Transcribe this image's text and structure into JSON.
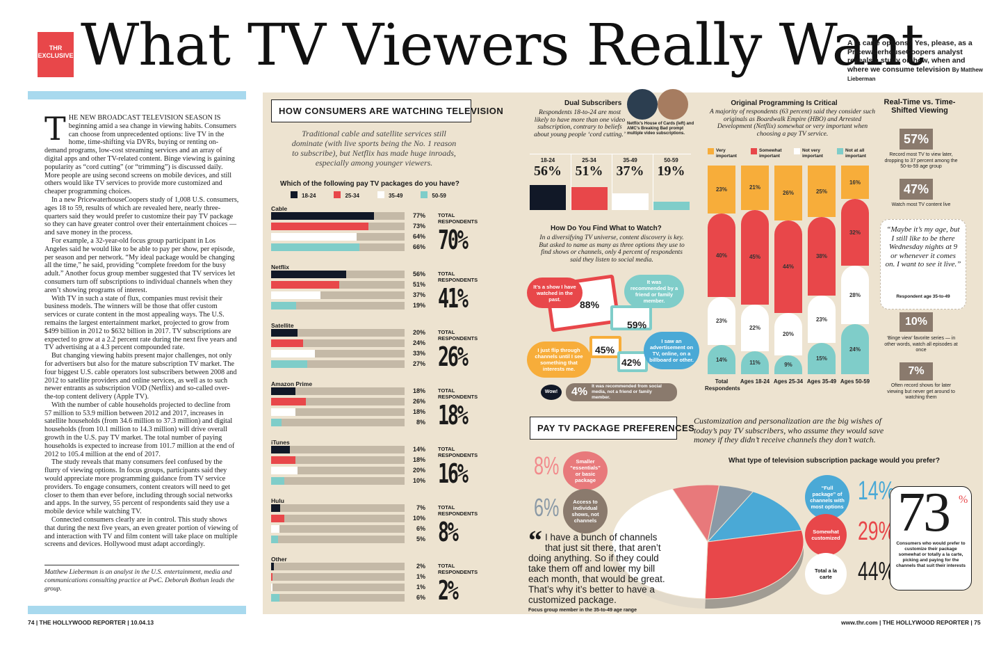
{
  "header": {
    "exclusive": "THR EXCLUSIVE",
    "title": "What TV Viewers Really Want",
    "dek": "A la carte options? Yes, please, as a PricewaterhouseCoopers analyst reveals a study on how, when and where we consume television",
    "byline": "By Matthew Lieberman"
  },
  "article": {
    "dropcap": "T",
    "paragraphs": [
      "HE NEW BROADCAST TELEVISION SEASON IS beginning amid a sea change in viewing habits. Consumers can choose from unprecedented options: live TV in the home, time-shifting via DVRs, buying or renting on-demand programs, low-cost streaming services and an array of digital apps and other TV-related content. Binge viewing is gaining popularity as “cord cutting” (or “trimming”) is discussed daily. More people are using second screens on mobile devices, and still others would like TV services to provide more customized and cheaper programming choices.",
      "In a new PricewaterhouseCoopers study of 1,008 U.S. consumers, ages 18 to 59, results of which are revealed here, nearly three-quarters said they would prefer to customize their pay TV package so they can have greater control over their entertainment choices — and save money in the process.",
      "For example, a 32-year-old focus group participant in Los Angeles said he would like to be able to pay per show, per episode, per season and per network. “My ideal package would be changing all the time,” he said, providing “complete freedom for the busy adult.” Another focus group member suggested that TV services let consumers turn off subscriptions to individual channels when they aren’t showing programs of interest.",
      "With TV in such a state of flux, companies must revisit their business models. The winners will be those that offer custom services or curate content in the most appealing ways. The U.S. remains the largest entertainment market, projected to grow from $499 billion in 2012 to $632 billion in 2017. TV subscriptions are expected to grow at a 2.2 percent rate during the next five years and TV advertising at a 4.3 percent compounded rate.",
      "But changing viewing habits present major challenges, not only for advertisers but also for the mature subscription TV market. The four biggest U.S. cable operators lost subscribers between 2008 and 2012 to satellite providers and online services, as well as to such newer entrants as subscription VOD (Netflix) and so-called over-the-top content delivery (Apple TV).",
      "With the number of cable households projected to decline from 57 million to 53.9 million between 2012 and 2017, increases in satellite households (from 34.6 million to 37.3 million) and digital households (from 10.1 million to 14.3 million) will drive overall growth in the U.S. pay TV market. The total number of paying households is expected to increase from 101.7 million at the end of 2012 to 105.4 million at the end of 2017.",
      "The study reveals that many consumers feel confused by the flurry of viewing options. In focus groups, participants said they would appreciate more programming guidance from TV service providers. To engage consumers, content creators will need to get closer to them than ever before, including through social networks and apps. In the survey, 55 percent of respondents said they use a mobile device while watching TV.",
      "Connected consumers clearly are in control. This study shows that during the next five years, an even greater portion of viewing of and interaction with TV and film content will take place on multiple screens and devices. Hollywood must adapt accordingly."
    ],
    "bio": "Matthew Lieberman is an analyst in the U.S. entertainment, media and communications consulting practice at PwC. Deborah Bothun leads the group."
  },
  "watching": {
    "heading": "HOW CONSUMERS ARE WATCHING TELEVISION",
    "intro": "Traditional cable and satellite services still dominate (with live sports being the No. 1 reason to subscribe), but Netflix has made huge inroads, especially among younger viewers.",
    "question": "Which of the following pay TV packages do you have?",
    "legend": [
      "18-24",
      "25-34",
      "35-49",
      "50-59"
    ],
    "total_label": "TOTAL RESPONDENTS",
    "services": [
      {
        "name": "Cable",
        "values": [
          77,
          73,
          64,
          66
        ],
        "labels": [
          "77%",
          "73%",
          "64%",
          "66%"
        ],
        "total": "70%"
      },
      {
        "name": "Netflix",
        "values": [
          56,
          51,
          37,
          19
        ],
        "labels": [
          "56%",
          "51%",
          "37%",
          "19%"
        ],
        "total": "41%"
      },
      {
        "name": "Satellite",
        "values": [
          20,
          24,
          33,
          27
        ],
        "labels": [
          "20%",
          "24%",
          "33%",
          "27%"
        ],
        "total": "26%"
      },
      {
        "name": "Amazon Prime",
        "values": [
          18,
          26,
          18,
          8
        ],
        "labels": [
          "18%",
          "26%",
          "18%",
          "8%"
        ],
        "total": "18%"
      },
      {
        "name": "iTunes",
        "values": [
          14,
          18,
          20,
          10
        ],
        "labels": [
          "14%",
          "18%",
          "20%",
          "10%"
        ],
        "total": "16%"
      },
      {
        "name": "Hulu",
        "values": [
          7,
          10,
          6,
          5
        ],
        "labels": [
          "7%",
          "10%",
          "6%",
          "5%"
        ],
        "total": "8%"
      },
      {
        "name": "Other",
        "values": [
          2,
          1,
          1,
          6
        ],
        "labels": [
          "2%",
          "1%",
          "1%",
          "6%"
        ],
        "total": "2%"
      }
    ]
  },
  "dual": {
    "title": "Dual Subscribers",
    "text": "Respondents 18-to-24 are most likely to have more than one video subscription, contrary to beliefs about young people ‘cord cutting.’",
    "caption": "Netflix’s House of Cards (left) and AMC’s Breaking Bad prompt multiple video subscriptions.",
    "groups": [
      "18-24",
      "25-34",
      "35-49",
      "50-59"
    ],
    "values": [
      56,
      51,
      37,
      19
    ],
    "labels": [
      "56%",
      "51%",
      "37%",
      "19%"
    ]
  },
  "find": {
    "title": "How Do You Find What to Watch?",
    "text": "In a diversifying TV universe, content discovery is key. But asked to name as many as three options they use to find shows or channels, only 4 percent of respondents said they listen to social media.",
    "items": [
      {
        "label": "It’s a show I have watched in the past.",
        "pct": "88%"
      },
      {
        "label": "It was recommended by a friend or family member.",
        "pct": "59%"
      },
      {
        "label": "I just flip through channels until I see something that interests me.",
        "pct": "45%"
      },
      {
        "label": "I saw an advertisement on TV, online, on a billboard or other.",
        "pct": "42%"
      }
    ],
    "wow": "Wow!",
    "social_pct": "4%",
    "social_text": "It was recommended from social media, not a friend or family member."
  },
  "original": {
    "title": "Original Programming Is Critical",
    "text": "A majority of respondents (63 percent) said they consider such originals as Boardwalk Empire (HBO) and Arrested Development (Netflix) somewhat or very important when choosing a pay TV service.",
    "legend": [
      "Very important",
      "Somewhat important",
      "Not very important",
      "Not at all important"
    ],
    "columns": [
      {
        "label": "Total Respondents",
        "values": [
          23,
          40,
          23,
          14
        ],
        "labels": [
          "23%",
          "40%",
          "23%",
          "14%"
        ]
      },
      {
        "label": "Ages 18-24",
        "values": [
          21,
          45,
          22,
          11
        ],
        "labels": [
          "21%",
          "45%",
          "22%",
          "11%"
        ]
      },
      {
        "label": "Ages 25-34",
        "values": [
          26,
          44,
          20,
          9
        ],
        "labels": [
          "26%",
          "44%",
          "20%",
          "9%"
        ]
      },
      {
        "label": "Ages 35-49",
        "values": [
          25,
          38,
          23,
          15
        ],
        "labels": [
          "25%",
          "38%",
          "23%",
          "15%"
        ]
      },
      {
        "label": "Ages 50-59",
        "values": [
          16,
          32,
          28,
          24
        ],
        "labels": [
          "16%",
          "32%",
          "28%",
          "24%"
        ]
      }
    ]
  },
  "realtime": {
    "title": "Real-Time vs. Time-Shifted Viewing",
    "stats": [
      {
        "pct": "57%",
        "text": "Record most TV to view later, dropping to 37 percent among the 50-to-59 age group"
      },
      {
        "pct": "47%",
        "text": "Watch most TV content live"
      },
      {
        "pct": "10%",
        "text": "‘Binge view’ favorite series — in other words, watch all episodes at once"
      },
      {
        "pct": "7%",
        "text": "Often record shows for later viewing but never get around to watching them"
      }
    ],
    "quote": "“Maybe it’s my age, but I still like to be there Wednesday nights at 9 or whenever it comes on. I want to see it live.”",
    "quote_attr": "Respondent age 35-to-49"
  },
  "prefs": {
    "heading": "PAY TV PACKAGE PREFERENCES",
    "intro": "Customization and personalization are the big wishes of today’s pay TV subscribers, who assume they would save money if they didn’t receive channels they don’t watch.",
    "question": "What type of television subscription package would you prefer?",
    "slices": [
      {
        "label": "Smaller “essentials” or basic package",
        "pct": "8%",
        "value": 8
      },
      {
        "label": "Access to individual shows, not channels",
        "pct": "6%",
        "value": 6
      },
      {
        "label": "“Full package” of channels with most options",
        "pct": "14%",
        "value": 14
      },
      {
        "label": "Somewhat customized",
        "pct": "29%",
        "value": 29
      },
      {
        "label": "Total a la carte",
        "pct": "44%",
        "value": 44
      }
    ],
    "quote": "I have a bunch of channels that just sit there, that aren’t doing anything. So if they could take them off and lower my bill each month, that would be great. That’s why it’s better to have a customized package.",
    "quote_attr": "Focus group member in the 35-to-49 age range",
    "big_pct": "73",
    "big_sign": "%",
    "big_text": "Consumers who would prefer to customize their package somewhat or totally a la carte, picking and paying for the channels that suit their interests"
  },
  "footer": {
    "left": "74 | THE HOLLYWOOD REPORTER | 10.04.13",
    "right": "www.thr.com | THE HOLLYWOOD REPORTER | 75"
  },
  "colors": {
    "dark": "#111827",
    "red": "#e8474a",
    "white": "#ffffff",
    "teal": "#7fcdc9",
    "orange": "#f7ad3a",
    "beige": "#ede3d0"
  }
}
